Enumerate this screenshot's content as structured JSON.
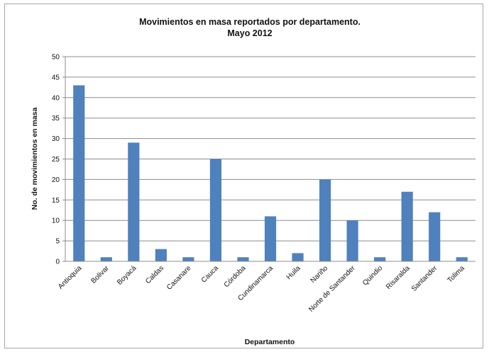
{
  "chart_data": {
    "type": "bar",
    "title": "Movimientos en masa reportados por departamento.",
    "subtitle": "Mayo 2012",
    "xlabel": "Departamento",
    "ylabel": "No. de movimientos en masa",
    "categories": [
      "Antioquia",
      "Bolivar",
      "Boyacá",
      "Caldas",
      "Casanare",
      "Cauca",
      "Córdoba",
      "Cundinamarca",
      "Huila",
      "Nariño",
      "Norte de Santander",
      "Quindio",
      "Risaralda",
      "Santander",
      "Tolima"
    ],
    "values": [
      43,
      1,
      29,
      3,
      1,
      25,
      1,
      11,
      2,
      20,
      10,
      1,
      17,
      12,
      1
    ],
    "ylim": [
      0,
      50
    ],
    "yticks": [
      0,
      5,
      10,
      15,
      20,
      25,
      30,
      35,
      40,
      45,
      50
    ],
    "grid": true,
    "legend": "none",
    "bar_color": "#4f81bd"
  }
}
